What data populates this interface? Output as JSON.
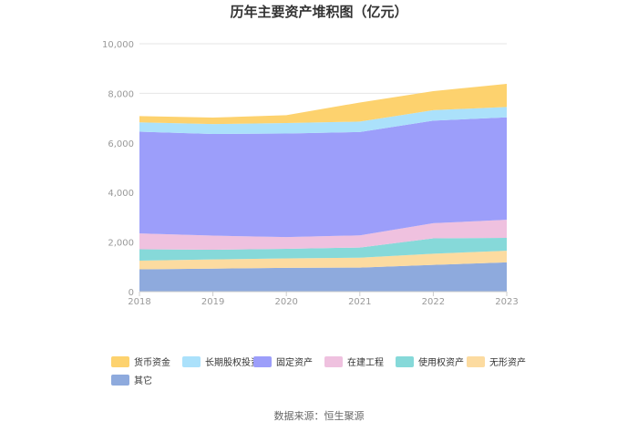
{
  "chart_data": {
    "type": "area",
    "stacked": true,
    "title": "历年主要资产堆积图（亿元）",
    "categories": [
      "2018",
      "2019",
      "2020",
      "2021",
      "2022",
      "2023"
    ],
    "ylim": [
      0,
      10000
    ],
    "yticks": [
      "0",
      "2,000",
      "4,000",
      "6,000",
      "8,000",
      "10,000"
    ],
    "series": [
      {
        "name": "其它",
        "color": "#8eaadd",
        "values": [
          900,
          930,
          960,
          970,
          1080,
          1180
        ]
      },
      {
        "name": "无形资产",
        "color": "#fcdba0",
        "values": [
          350,
          370,
          380,
          400,
          450,
          470
        ]
      },
      {
        "name": "使用权资产",
        "color": "#86d9d9",
        "values": [
          460,
          390,
          390,
          410,
          620,
          520
        ]
      },
      {
        "name": "在建工程",
        "color": "#efc1df",
        "values": [
          640,
          570,
          470,
          490,
          610,
          730
        ]
      },
      {
        "name": "固定资产",
        "color": "#9c9efa",
        "values": [
          4100,
          4100,
          4180,
          4170,
          4140,
          4130
        ]
      },
      {
        "name": "长期股权投资",
        "color": "#abe1fb",
        "values": [
          380,
          400,
          420,
          420,
          420,
          420
        ]
      },
      {
        "name": "货币资金",
        "color": "#fdd26e",
        "values": [
          250,
          260,
          320,
          770,
          770,
          930
        ]
      }
    ],
    "legend_position": "bottom",
    "source": "数据来源：恒生聚源"
  }
}
